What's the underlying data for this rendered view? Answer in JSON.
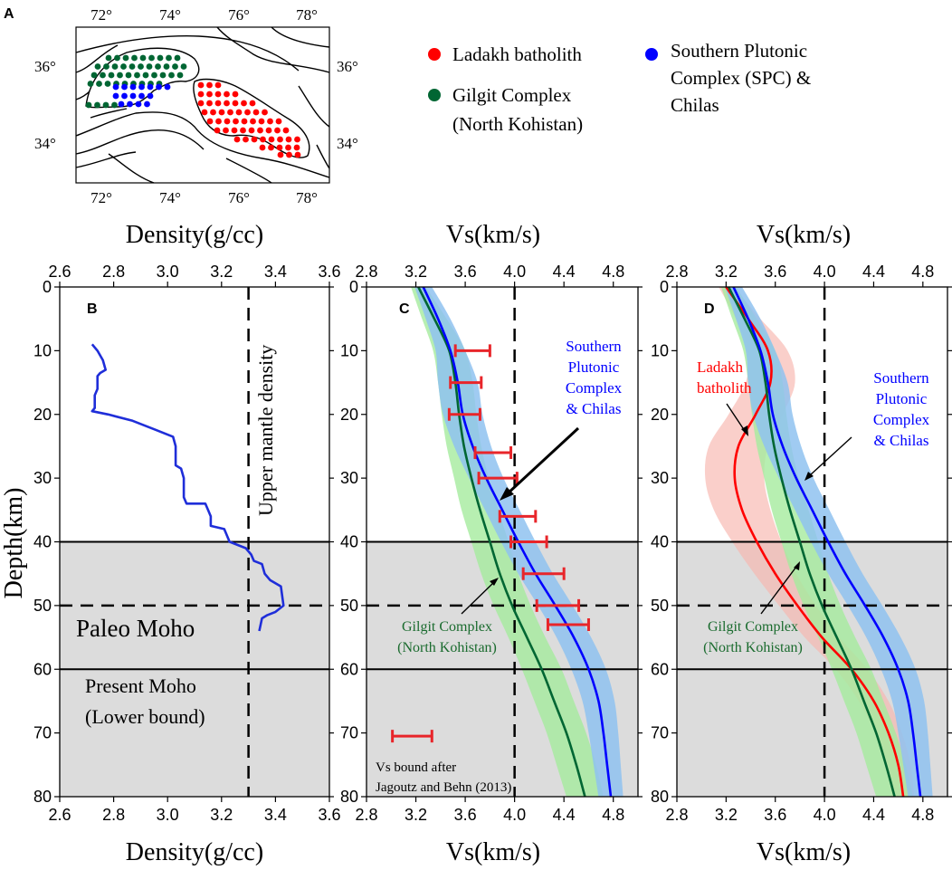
{
  "figure": {
    "panel_labels": {
      "a": "A",
      "b": "B",
      "c": "C",
      "d": "D"
    },
    "colors": {
      "ladakh": "#ff0000",
      "gilgit": "#006633",
      "spc": "#0000ff",
      "spc_band": "#8fc2f0",
      "gilgit_band": "#a5eb9e",
      "ladakh_band": "#f7b6ae",
      "moho_shade": "#dcdcdc",
      "error_bar": "#e8252a",
      "density_line": "#1f2ed9"
    }
  },
  "map": {
    "top_ticks": [
      "72°",
      "74°",
      "76°",
      "78°"
    ],
    "bottom_ticks": [
      "72°",
      "74°",
      "76°",
      "78°"
    ],
    "left_ticks": [
      "36°",
      "34°"
    ],
    "right_ticks": [
      "36°",
      "34°"
    ]
  },
  "legend": {
    "ladakh": "Ladakh batholith",
    "gilgit_line1": "Gilgit Complex",
    "gilgit_line2": "(North Kohistan)",
    "spc_line1": "Southern Plutonic",
    "spc_line2": "Complex (SPC) &",
    "spc_line3": "Chilas"
  },
  "shared": {
    "y_label": "Depth(km)",
    "y_ticks": [
      "0",
      "10",
      "20",
      "30",
      "40",
      "50",
      "60",
      "70",
      "80"
    ]
  },
  "chart_data": [
    {
      "panel": "B",
      "type": "line",
      "xlabel_top": "Density(g/cc)",
      "xlabel_bottom": "Density(g/cc)",
      "ylabel": "Depth(km)",
      "xlim": [
        2.6,
        3.6
      ],
      "ylim": [
        80,
        0
      ],
      "x_ticks": [
        "2.6",
        "2.8",
        "3.0",
        "3.2",
        "3.4",
        "3.6"
      ],
      "reference_line": {
        "x": 3.3,
        "label": "Upper mantle density"
      },
      "moho": {
        "paleo_depth": 50,
        "paleo_label": "Paleo Moho",
        "present_depth": 60,
        "present_label_1": "Present Moho",
        "present_label_2": "(Lower bound)",
        "shade_top": 40
      },
      "series": [
        {
          "name": "Density profile",
          "points": [
            [
              2.72,
              9
            ],
            [
              2.74,
              10
            ],
            [
              2.76,
              11.5
            ],
            [
              2.77,
              13
            ],
            [
              2.75,
              13.5
            ],
            [
              2.74,
              14
            ],
            [
              2.74,
              16
            ],
            [
              2.73,
              17
            ],
            [
              2.73,
              19
            ],
            [
              2.72,
              19.5
            ],
            [
              2.78,
              20
            ],
            [
              2.87,
              21
            ],
            [
              2.96,
              22.5
            ],
            [
              3.02,
              23.5
            ],
            [
              3.03,
              25
            ],
            [
              3.03,
              28
            ],
            [
              3.05,
              28.5
            ],
            [
              3.06,
              30
            ],
            [
              3.06,
              33
            ],
            [
              3.07,
              34
            ],
            [
              3.14,
              34
            ],
            [
              3.15,
              35
            ],
            [
              3.16,
              36
            ],
            [
              3.16,
              37.5
            ],
            [
              3.21,
              38
            ],
            [
              3.23,
              40
            ],
            [
              3.29,
              41
            ],
            [
              3.31,
              42
            ],
            [
              3.32,
              43
            ],
            [
              3.35,
              43.5
            ],
            [
              3.36,
              45
            ],
            [
              3.38,
              46
            ],
            [
              3.42,
              47
            ],
            [
              3.43,
              50
            ],
            [
              3.4,
              51
            ],
            [
              3.37,
              51.5
            ],
            [
              3.35,
              52
            ],
            [
              3.34,
              54
            ]
          ]
        }
      ]
    },
    {
      "panel": "C",
      "type": "line",
      "xlabel_top": "Vs(km/s)",
      "xlabel_bottom": "Vs(km/s)",
      "xlim": [
        2.8,
        5.0
      ],
      "ylim": [
        80,
        0
      ],
      "x_ticks": [
        "2.8",
        "3.2",
        "3.6",
        "4.0",
        "4.4",
        "4.8"
      ],
      "reference_line": {
        "x": 4.0
      },
      "series": [
        {
          "name": "Southern Plutonic Complex & Chilas",
          "label_lines": [
            "Southern",
            "Plutonic",
            "Complex",
            "& Chilas"
          ],
          "depth": [
            0,
            5,
            10,
            15,
            20,
            25,
            30,
            35,
            40,
            45,
            50,
            55,
            60,
            65,
            70,
            75,
            80
          ],
          "vs": [
            3.26,
            3.38,
            3.48,
            3.54,
            3.58,
            3.66,
            3.77,
            3.9,
            4.03,
            4.17,
            4.33,
            4.48,
            4.6,
            4.68,
            4.72,
            4.75,
            4.78
          ],
          "band_halfwidth": [
            0.07,
            0.1,
            0.12,
            0.16,
            0.16,
            0.15,
            0.14,
            0.14,
            0.14,
            0.14,
            0.14,
            0.14,
            0.14,
            0.13,
            0.12,
            0.11,
            0.1
          ]
        },
        {
          "name": "Gilgit Complex (North Kohistan)",
          "label_lines": [
            "Gilgit Complex",
            "(North Kohistan)"
          ],
          "depth": [
            0,
            5,
            10,
            15,
            20,
            25,
            30,
            35,
            40,
            45,
            50,
            55,
            60,
            65,
            70,
            75,
            80
          ],
          "vs": [
            3.22,
            3.35,
            3.47,
            3.52,
            3.55,
            3.59,
            3.65,
            3.72,
            3.8,
            3.88,
            3.98,
            4.1,
            4.22,
            4.32,
            4.42,
            4.5,
            4.57
          ],
          "band_halfwidth": [
            0.06,
            0.1,
            0.13,
            0.14,
            0.14,
            0.14,
            0.14,
            0.15,
            0.15,
            0.15,
            0.15,
            0.15,
            0.16,
            0.16,
            0.16,
            0.16,
            0.15
          ]
        }
      ],
      "error_bars": {
        "legend_line1": "Vs bound after",
        "legend_line2": "Jagoutz and Behn (2013)",
        "legend_sample": {
          "depth": 70.5,
          "vs_min": 3.01,
          "vs_max": 3.33
        },
        "bounds": [
          {
            "depth": 10,
            "vs_min": 3.52,
            "vs_max": 3.8
          },
          {
            "depth": 15,
            "vs_min": 3.48,
            "vs_max": 3.73
          },
          {
            "depth": 20,
            "vs_min": 3.47,
            "vs_max": 3.72
          },
          {
            "depth": 26,
            "vs_min": 3.68,
            "vs_max": 3.97
          },
          {
            "depth": 30,
            "vs_min": 3.71,
            "vs_max": 4.02
          },
          {
            "depth": 36,
            "vs_min": 3.88,
            "vs_max": 4.17
          },
          {
            "depth": 40,
            "vs_min": 3.97,
            "vs_max": 4.26
          },
          {
            "depth": 45,
            "vs_min": 4.07,
            "vs_max": 4.4
          },
          {
            "depth": 50,
            "vs_min": 4.18,
            "vs_max": 4.52
          },
          {
            "depth": 53,
            "vs_min": 4.27,
            "vs_max": 4.6
          }
        ]
      }
    },
    {
      "panel": "D",
      "type": "line",
      "xlabel_top": "Vs(km/s)",
      "xlabel_bottom": "Vs(km/s)",
      "xlim": [
        2.8,
        5.0
      ],
      "ylim": [
        80,
        0
      ],
      "x_ticks": [
        "2.8",
        "3.2",
        "3.6",
        "4.0",
        "4.4",
        "4.8"
      ],
      "reference_line": {
        "x": 4.0
      },
      "series": [
        {
          "name": "Southern Plutonic Complex & Chilas",
          "label_lines": [
            "Southern",
            "Plutonic",
            "Complex",
            "& Chilas"
          ],
          "depth": [
            0,
            5,
            10,
            15,
            20,
            25,
            30,
            35,
            40,
            45,
            50,
            55,
            60,
            65,
            70,
            75,
            80
          ],
          "vs": [
            3.26,
            3.38,
            3.48,
            3.54,
            3.58,
            3.66,
            3.77,
            3.9,
            4.03,
            4.17,
            4.33,
            4.48,
            4.6,
            4.68,
            4.72,
            4.75,
            4.78
          ],
          "band_halfwidth": [
            0.07,
            0.1,
            0.12,
            0.16,
            0.16,
            0.15,
            0.14,
            0.14,
            0.14,
            0.14,
            0.14,
            0.14,
            0.14,
            0.13,
            0.12,
            0.11,
            0.1
          ]
        },
        {
          "name": "Gilgit Complex (North Kohistan)",
          "label_lines": [
            "Gilgit Complex",
            "(North Kohistan)"
          ],
          "depth": [
            0,
            5,
            10,
            15,
            20,
            25,
            30,
            35,
            40,
            45,
            50,
            55,
            60,
            65,
            70,
            75,
            80
          ],
          "vs": [
            3.22,
            3.35,
            3.47,
            3.52,
            3.55,
            3.59,
            3.65,
            3.72,
            3.8,
            3.88,
            3.98,
            4.1,
            4.22,
            4.32,
            4.42,
            4.5,
            4.57
          ],
          "band_halfwidth": [
            0.06,
            0.1,
            0.13,
            0.14,
            0.14,
            0.14,
            0.14,
            0.15,
            0.15,
            0.15,
            0.15,
            0.15,
            0.16,
            0.16,
            0.16,
            0.16,
            0.15
          ]
        },
        {
          "name": "Ladakh batholith",
          "label_lines": [
            "Ladakh",
            "batholith"
          ],
          "depth": [
            0,
            5,
            10,
            15,
            20,
            25,
            30,
            35,
            40,
            45,
            50,
            55,
            60,
            65,
            70,
            75,
            80
          ],
          "vs": [
            3.2,
            3.38,
            3.54,
            3.56,
            3.44,
            3.3,
            3.27,
            3.33,
            3.45,
            3.6,
            3.78,
            3.98,
            4.22,
            4.4,
            4.52,
            4.6,
            4.64
          ],
          "band_halfwidth": [
            0.06,
            0.1,
            0.16,
            0.2,
            0.22,
            0.24,
            0.24,
            0.23,
            0.2,
            0.17,
            0.15,
            0.14,
            0.13,
            0.12,
            0.11,
            0.1,
            0.09
          ]
        }
      ]
    }
  ]
}
